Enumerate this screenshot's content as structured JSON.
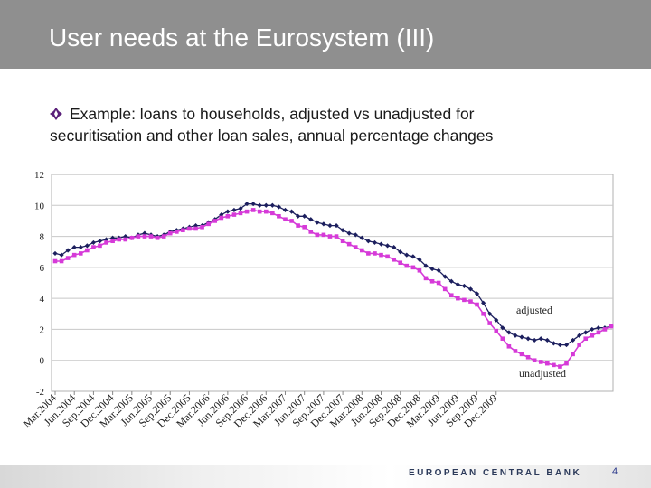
{
  "slide": {
    "title": "User needs at the Eurosystem (III)",
    "bullet": "Example: loans to households, adjusted vs unadjusted for securitisation and other loan sales, annual percentage changes",
    "bullet_color": "#5a1f7a"
  },
  "footer": {
    "bank_name": "EUROPEAN CENTRAL BANK",
    "page_number": "4"
  },
  "chart_data": {
    "type": "line",
    "title": "",
    "xlabel": "",
    "ylabel": "",
    "ylim": [
      -2,
      12
    ],
    "y_ticks": [
      "12",
      "10",
      "8",
      "6",
      "4",
      "2",
      "0",
      "-2"
    ],
    "grid": true,
    "x_tick_labels": [
      "Mar.2004",
      "Jun.2004",
      "Sep.2004",
      "Dec.2004",
      "Mar.2005",
      "Jun.2005",
      "Sep.2005",
      "Dec.2005",
      "Mar.2006",
      "Jun.2006",
      "Sep.2006",
      "Dec.2006",
      "Mar.2007",
      "Jun.2007",
      "Sep.2007",
      "Dec.2007",
      "Mar.2008",
      "Jun.2008",
      "Sep.2008",
      "Dec.2008",
      "Mar.2009",
      "Jun.2009",
      "Sep.2009",
      "Dec.2009"
    ],
    "x_start": "Mar.2004",
    "x_step": "month",
    "series": [
      {
        "name": "adjusted",
        "color": "#1c1f5e",
        "marker": "diamond",
        "values": [
          6.9,
          6.8,
          7.1,
          7.3,
          7.3,
          7.4,
          7.6,
          7.7,
          7.8,
          7.9,
          7.9,
          8.0,
          7.9,
          8.1,
          8.2,
          8.1,
          8.0,
          8.1,
          8.3,
          8.4,
          8.5,
          8.6,
          8.7,
          8.7,
          8.9,
          9.1,
          9.4,
          9.6,
          9.7,
          9.8,
          10.1,
          10.1,
          10.0,
          10.0,
          10.0,
          9.9,
          9.7,
          9.6,
          9.3,
          9.3,
          9.1,
          8.9,
          8.8,
          8.7,
          8.7,
          8.4,
          8.2,
          8.1,
          7.9,
          7.7,
          7.6,
          7.5,
          7.4,
          7.3,
          7.0,
          6.8,
          6.7,
          6.5,
          6.1,
          5.9,
          5.8,
          5.4,
          5.1,
          4.9,
          4.8,
          4.6,
          4.3,
          3.7,
          3.0,
          2.6,
          2.1,
          1.8,
          1.6,
          1.5,
          1.4,
          1.3,
          1.4,
          1.3,
          1.1,
          1.0,
          1.0,
          1.3,
          1.6,
          1.8,
          2.0,
          2.1,
          2.1,
          2.2
        ]
      },
      {
        "name": "unadjusted",
        "color": "#d63ad8",
        "marker": "square",
        "values": [
          6.4,
          6.4,
          6.6,
          6.8,
          6.9,
          7.1,
          7.3,
          7.4,
          7.6,
          7.7,
          7.8,
          7.8,
          7.9,
          8.0,
          8.0,
          8.0,
          7.9,
          8.0,
          8.2,
          8.3,
          8.4,
          8.5,
          8.5,
          8.6,
          8.8,
          9.0,
          9.2,
          9.3,
          9.4,
          9.5,
          9.6,
          9.7,
          9.6,
          9.6,
          9.5,
          9.3,
          9.1,
          9.0,
          8.7,
          8.6,
          8.3,
          8.1,
          8.1,
          8.0,
          8.0,
          7.7,
          7.5,
          7.3,
          7.1,
          6.9,
          6.9,
          6.8,
          6.7,
          6.5,
          6.3,
          6.1,
          6.0,
          5.8,
          5.3,
          5.1,
          5.0,
          4.6,
          4.2,
          4.0,
          3.9,
          3.8,
          3.6,
          3.0,
          2.4,
          1.9,
          1.4,
          0.9,
          0.6,
          0.4,
          0.2,
          0.0,
          -0.1,
          -0.2,
          -0.3,
          -0.4,
          -0.2,
          0.4,
          1.0,
          1.4,
          1.6,
          1.8,
          2.0,
          2.2
        ]
      }
    ],
    "annotations": [
      {
        "text": "adjusted",
        "series": "adjusted"
      },
      {
        "text": "unadjusted",
        "series": "unadjusted"
      }
    ]
  }
}
